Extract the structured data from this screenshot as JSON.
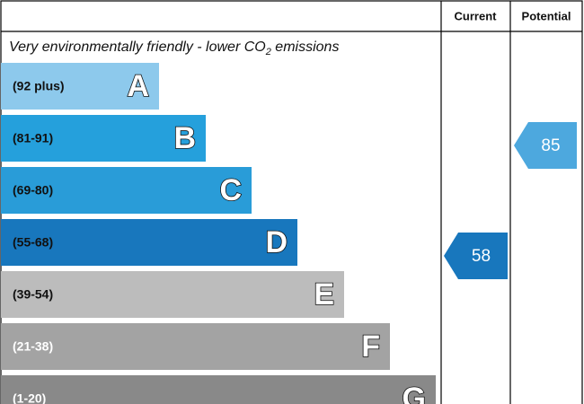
{
  "header": {
    "current": "Current",
    "potential": "Potential"
  },
  "subtitle": {
    "before": "Very environmentally friendly - lower CO",
    "sub": "2",
    "after": " emissions"
  },
  "bands": [
    {
      "range": "(92 plus)",
      "letter": "A"
    },
    {
      "range": "(81-91)",
      "letter": "B"
    },
    {
      "range": "(69-80)",
      "letter": "C"
    },
    {
      "range": "(55-68)",
      "letter": "D"
    },
    {
      "range": "(39-54)",
      "letter": "E"
    },
    {
      "range": "(21-38)",
      "letter": "F"
    },
    {
      "range": "(1-20)",
      "letter": "G"
    }
  ],
  "current": "58",
  "potential": "85"
}
